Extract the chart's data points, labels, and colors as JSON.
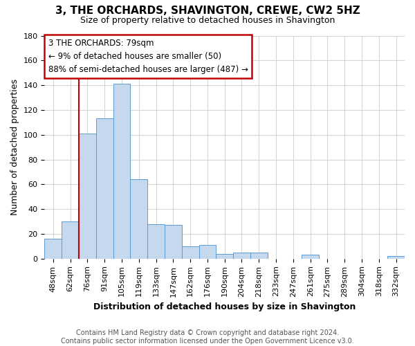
{
  "title": "3, THE ORCHARDS, SHAVINGTON, CREWE, CW2 5HZ",
  "subtitle": "Size of property relative to detached houses in Shavington",
  "xlabel": "Distribution of detached houses by size in Shavington",
  "ylabel": "Number of detached properties",
  "categories": [
    "48sqm",
    "62sqm",
    "76sqm",
    "91sqm",
    "105sqm",
    "119sqm",
    "133sqm",
    "147sqm",
    "162sqm",
    "176sqm",
    "190sqm",
    "204sqm",
    "218sqm",
    "233sqm",
    "247sqm",
    "261sqm",
    "275sqm",
    "289sqm",
    "304sqm",
    "318sqm",
    "332sqm"
  ],
  "values": [
    16,
    30,
    101,
    113,
    141,
    64,
    28,
    27,
    10,
    11,
    4,
    5,
    5,
    0,
    0,
    3,
    0,
    0,
    0,
    0,
    2
  ],
  "bar_color": "#c5d8ed",
  "bar_edge_color": "#5b9bd5",
  "highlight_color": "#c00000",
  "annotation_line1": "3 THE ORCHARDS: 79sqm",
  "annotation_line2": "← 9% of detached houses are smaller (50)",
  "annotation_line3": "88% of semi-detached houses are larger (487) →",
  "footer_line1": "Contains HM Land Registry data © Crown copyright and database right 2024.",
  "footer_line2": "Contains public sector information licensed under the Open Government Licence v3.0.",
  "ylim": [
    0,
    180
  ],
  "yticks": [
    0,
    20,
    40,
    60,
    80,
    100,
    120,
    140,
    160,
    180
  ],
  "property_line_x": 2,
  "title_fontsize": 11,
  "subtitle_fontsize": 9,
  "xlabel_fontsize": 9,
  "ylabel_fontsize": 9,
  "tick_fontsize": 8,
  "annotation_fontsize": 8.5,
  "footer_fontsize": 7
}
